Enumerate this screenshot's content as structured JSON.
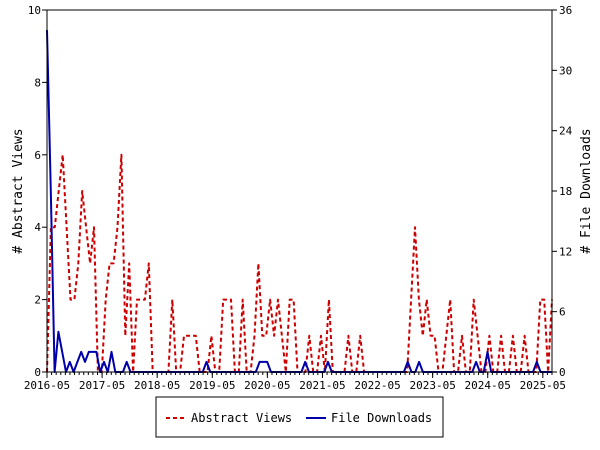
{
  "chart_data": {
    "type": "line",
    "title": "",
    "x_tick_labels": [
      "2016-05",
      "2017-05",
      "2018-05",
      "2019-05",
      "2020-05",
      "2021-05",
      "2022-05",
      "2023-05",
      "2024-05",
      "2025-05"
    ],
    "x_range": [
      "2016-05",
      "2025-07"
    ],
    "y_left": {
      "label": "# Abstract Views",
      "range": [
        0,
        10
      ],
      "ticks": [
        0,
        2,
        4,
        6,
        8,
        10
      ]
    },
    "y_right": {
      "label": "# File Downloads",
      "range": [
        0,
        36
      ],
      "ticks": [
        0,
        6,
        12,
        18,
        24,
        30,
        36
      ]
    },
    "grid": false,
    "legend_position": "bottom",
    "series": [
      {
        "name": "Abstract Views",
        "axis": "left",
        "color": "#cc0000",
        "style": "dashed",
        "values": [
          0,
          4,
          4,
          5,
          6,
          4,
          2,
          2,
          3,
          5,
          4,
          3,
          4,
          0,
          0,
          2,
          3,
          3,
          4,
          6,
          1,
          3,
          0,
          2,
          2,
          2,
          3,
          0,
          0,
          0,
          0,
          0,
          2,
          0,
          0,
          1,
          1,
          1,
          1,
          0,
          0,
          0,
          1,
          0,
          0,
          2,
          2,
          2,
          0,
          0,
          2,
          0,
          0,
          1,
          3,
          1,
          1,
          2,
          1,
          2,
          1,
          0,
          2,
          2,
          0,
          0,
          0,
          1,
          0,
          0,
          1,
          0,
          2,
          0,
          0,
          0,
          0,
          1,
          0,
          0,
          1,
          0,
          0,
          0,
          0,
          0,
          0,
          0,
          0,
          0,
          0,
          0,
          0,
          2,
          4,
          2,
          1,
          2,
          1,
          1,
          0,
          0,
          1,
          2,
          0,
          0,
          1,
          0,
          0,
          2,
          1,
          0,
          0,
          1,
          0,
          0,
          1,
          0,
          0,
          1,
          0,
          0,
          1,
          0,
          0,
          0,
          2,
          2,
          0,
          2
        ]
      },
      {
        "name": "File Downloads",
        "axis": "right",
        "color": "#0000aa",
        "style": "solid",
        "values": [
          34,
          18,
          0,
          4,
          2,
          0,
          1,
          0,
          1,
          2,
          1,
          2,
          2,
          2,
          0,
          1,
          0,
          2,
          0,
          0,
          0,
          1,
          0,
          0,
          0,
          0,
          0,
          0,
          0,
          0,
          0,
          0,
          0,
          0,
          0,
          0,
          0,
          0,
          0,
          0,
          0,
          0,
          1,
          0,
          0,
          0,
          0,
          0,
          0,
          0,
          0,
          0,
          0,
          0,
          0,
          0,
          1,
          1,
          1,
          0,
          0,
          0,
          0,
          0,
          0,
          0,
          0,
          0,
          1,
          0,
          0,
          0,
          0,
          0,
          1,
          0,
          0,
          0,
          0,
          0,
          0,
          0,
          0,
          0,
          0,
          0,
          0,
          0,
          0,
          0,
          0,
          0,
          0,
          0,
          0,
          1,
          0,
          0,
          1,
          0,
          0,
          0,
          0,
          0,
          0,
          0,
          0,
          0,
          0,
          0,
          0,
          0,
          0,
          1,
          0,
          0,
          2,
          0,
          0,
          0,
          0,
          0,
          0,
          0,
          0,
          0,
          0,
          0,
          0,
          1,
          0,
          0,
          0,
          0
        ]
      }
    ]
  }
}
